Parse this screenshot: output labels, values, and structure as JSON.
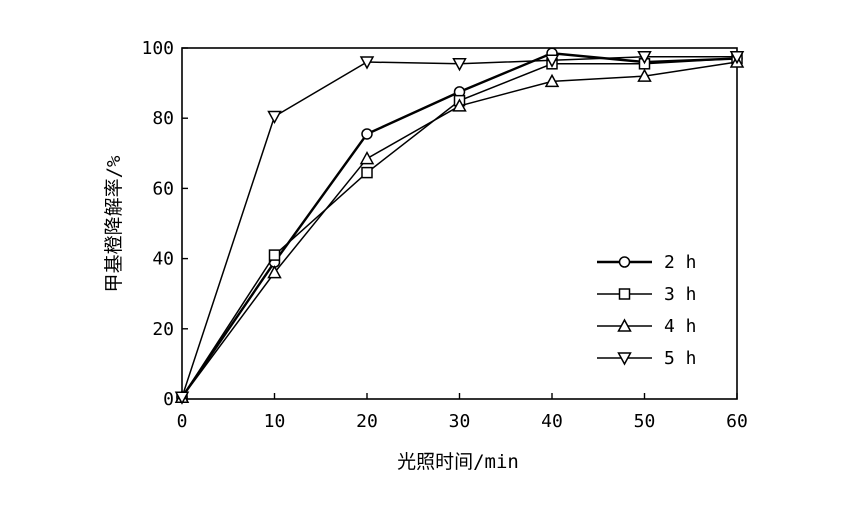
{
  "chart_data": {
    "type": "line",
    "xlabel": "光照时间/min",
    "ylabel": "甲基橙降解率/%",
    "xlim": [
      0,
      60
    ],
    "ylim": [
      0,
      100
    ],
    "xticks": [
      0,
      10,
      20,
      30,
      40,
      50,
      60
    ],
    "yticks": [
      0,
      20,
      40,
      60,
      80,
      100
    ],
    "grid": false,
    "legend_position": "right",
    "x": [
      0,
      10,
      20,
      30,
      40,
      50,
      60
    ],
    "series": [
      {
        "name": "2 h",
        "marker": "circle",
        "values": [
          0.5,
          39,
          75.5,
          87.5,
          98.5,
          96,
          97
        ]
      },
      {
        "name": "3 h",
        "marker": "square",
        "values": [
          0.5,
          41,
          64.5,
          85,
          95.5,
          95.5,
          97
        ]
      },
      {
        "name": "4 h",
        "marker": "triangle-up",
        "values": [
          0.5,
          36,
          68.5,
          83.5,
          90.5,
          92,
          96
        ]
      },
      {
        "name": "5 h",
        "marker": "triangle-down",
        "values": [
          0.5,
          80.5,
          96,
          95.5,
          96.5,
          97.5,
          97.5
        ]
      }
    ]
  }
}
